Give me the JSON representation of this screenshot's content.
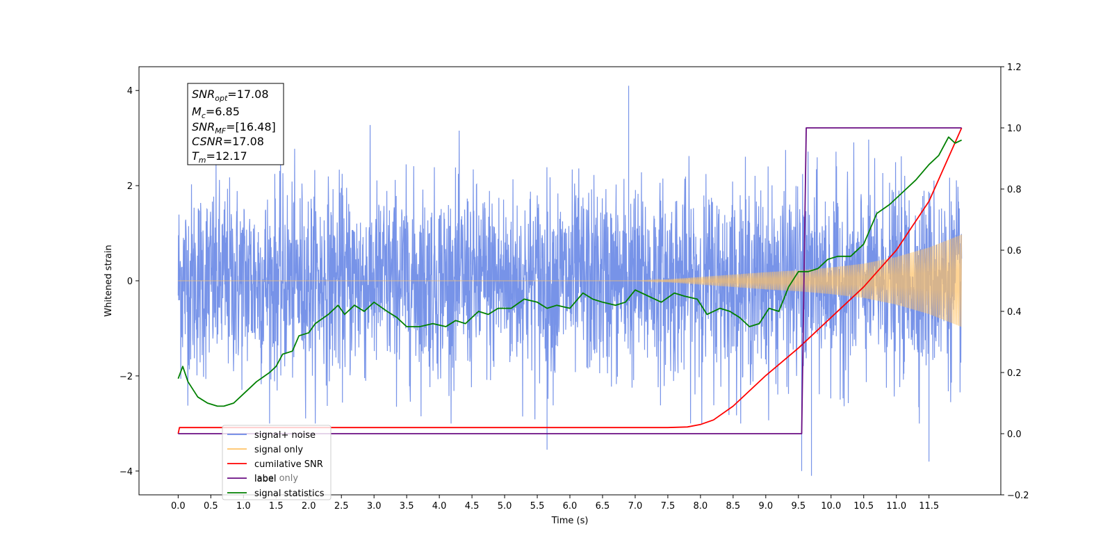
{
  "chart_data": {
    "type": "line",
    "xlabel": "Time (s)",
    "ylabel_left": "Whitened strain",
    "xlim": [
      -0.6,
      12.6
    ],
    "ylim_left": [
      -4.5,
      4.5
    ],
    "ylim_right": [
      -0.2,
      1.2
    ],
    "x_ticks": [
      "0.0",
      "0.5",
      "1.0",
      "1.5",
      "2.0",
      "2.5",
      "3.0",
      "3.5",
      "4.0",
      "4.5",
      "5.0",
      "5.5",
      "6.0",
      "6.5",
      "7.0",
      "7.5",
      "8.0",
      "8.5",
      "9.0",
      "9.5",
      "10.0",
      "10.5",
      "11.0",
      "11.5"
    ],
    "y_ticks_left": [
      "4",
      "2",
      "0",
      "−2",
      "−4"
    ],
    "y_ticks_right": [
      "1.2",
      "1.0",
      "0.8",
      "0.6",
      "0.4",
      "0.2",
      "0.0",
      "−0.2"
    ],
    "annotation": {
      "lines": [
        {
          "base": "SNR",
          "sub": "opt",
          "value": "=17.08"
        },
        {
          "base": "M",
          "sub": "c",
          "value": "=6.85"
        },
        {
          "base": "SNR",
          "sub": "MF",
          "value": "=[16.48]"
        },
        {
          "base": "CSNR",
          "sub": "",
          "value": "=17.08"
        },
        {
          "base": "T",
          "sub": "m",
          "value": "=12.17"
        }
      ]
    },
    "legend": {
      "placement": "lower-left",
      "entries": [
        {
          "label": "signal+ noise",
          "color": "#6b8ae6"
        },
        {
          "label": "signal only",
          "color": "#ffc266"
        },
        {
          "label": "cumilative SNR",
          "color": "#ff0000"
        },
        {
          "label": "label",
          "color": "#6a0d83"
        },
        {
          "label": "signal statistics",
          "color": "#008000"
        }
      ],
      "ghost_text": [
        "label only"
      ]
    },
    "series": [
      {
        "name": "signal+ noise",
        "axis": "left",
        "color": "#6b8ae6",
        "x_range": [
          0.0,
          12.0
        ],
        "noise_std": 1.0,
        "typical_range": [
          -3.0,
          3.3
        ],
        "extreme_points": [
          [
            6.9,
            4.1
          ],
          [
            9.7,
            -4.1
          ],
          [
            9.55,
            -4.0
          ],
          [
            11.5,
            -3.8
          ],
          [
            5.65,
            -3.55
          ]
        ]
      },
      {
        "name": "signal only",
        "axis": "left",
        "color": "#ffc266",
        "envelope": {
          "x": [
            0.0,
            7.0,
            7.5,
            8.0,
            8.5,
            9.0,
            9.5,
            10.0,
            10.5,
            11.0,
            11.5,
            12.0
          ],
          "amp": [
            0.0,
            0.0,
            0.03,
            0.08,
            0.13,
            0.18,
            0.22,
            0.28,
            0.36,
            0.5,
            0.7,
            0.97
          ]
        }
      },
      {
        "name": "cumilative SNR",
        "axis": "right",
        "color": "#ff0000",
        "x": [
          0.0,
          0.02,
          7.5,
          7.8,
          8.0,
          8.2,
          8.5,
          9.0,
          9.5,
          10.0,
          10.5,
          11.0,
          11.5,
          12.0
        ],
        "y": [
          0.0,
          0.02,
          0.02,
          0.022,
          0.03,
          0.045,
          0.09,
          0.19,
          0.28,
          0.38,
          0.48,
          0.6,
          0.76,
          1.0
        ]
      },
      {
        "name": "label",
        "axis": "right",
        "color": "#6a0d83",
        "x": [
          0.0,
          9.55,
          9.62,
          12.0
        ],
        "y": [
          0.0,
          0.0,
          1.0,
          1.0
        ]
      },
      {
        "name": "signal statistics",
        "axis": "right",
        "color": "#008000",
        "x": [
          0.0,
          0.07,
          0.15,
          0.3,
          0.45,
          0.6,
          0.7,
          0.85,
          1.0,
          1.2,
          1.4,
          1.5,
          1.6,
          1.75,
          1.85,
          2.0,
          2.1,
          2.3,
          2.45,
          2.55,
          2.7,
          2.85,
          3.0,
          3.2,
          3.35,
          3.5,
          3.7,
          3.9,
          4.1,
          4.25,
          4.4,
          4.6,
          4.75,
          4.9,
          5.1,
          5.3,
          5.5,
          5.65,
          5.8,
          6.0,
          6.2,
          6.35,
          6.5,
          6.7,
          6.85,
          7.0,
          7.2,
          7.4,
          7.6,
          7.75,
          7.95,
          8.1,
          8.3,
          8.45,
          8.6,
          8.75,
          8.9,
          9.05,
          9.2,
          9.35,
          9.5,
          9.65,
          9.8,
          9.95,
          10.1,
          10.3,
          10.5,
          10.7,
          10.9,
          11.1,
          11.3,
          11.5,
          11.65,
          11.8,
          11.9,
          12.0
        ],
        "y": [
          0.18,
          0.22,
          0.17,
          0.12,
          0.1,
          0.09,
          0.09,
          0.1,
          0.13,
          0.17,
          0.2,
          0.22,
          0.26,
          0.27,
          0.32,
          0.33,
          0.36,
          0.39,
          0.42,
          0.39,
          0.42,
          0.4,
          0.43,
          0.4,
          0.38,
          0.35,
          0.35,
          0.36,
          0.35,
          0.37,
          0.36,
          0.4,
          0.39,
          0.41,
          0.41,
          0.44,
          0.43,
          0.41,
          0.42,
          0.41,
          0.46,
          0.44,
          0.43,
          0.42,
          0.43,
          0.47,
          0.45,
          0.43,
          0.46,
          0.45,
          0.44,
          0.39,
          0.41,
          0.4,
          0.38,
          0.35,
          0.36,
          0.41,
          0.4,
          0.48,
          0.53,
          0.53,
          0.54,
          0.57,
          0.58,
          0.58,
          0.62,
          0.72,
          0.75,
          0.79,
          0.83,
          0.88,
          0.91,
          0.97,
          0.95,
          0.96
        ]
      }
    ]
  }
}
